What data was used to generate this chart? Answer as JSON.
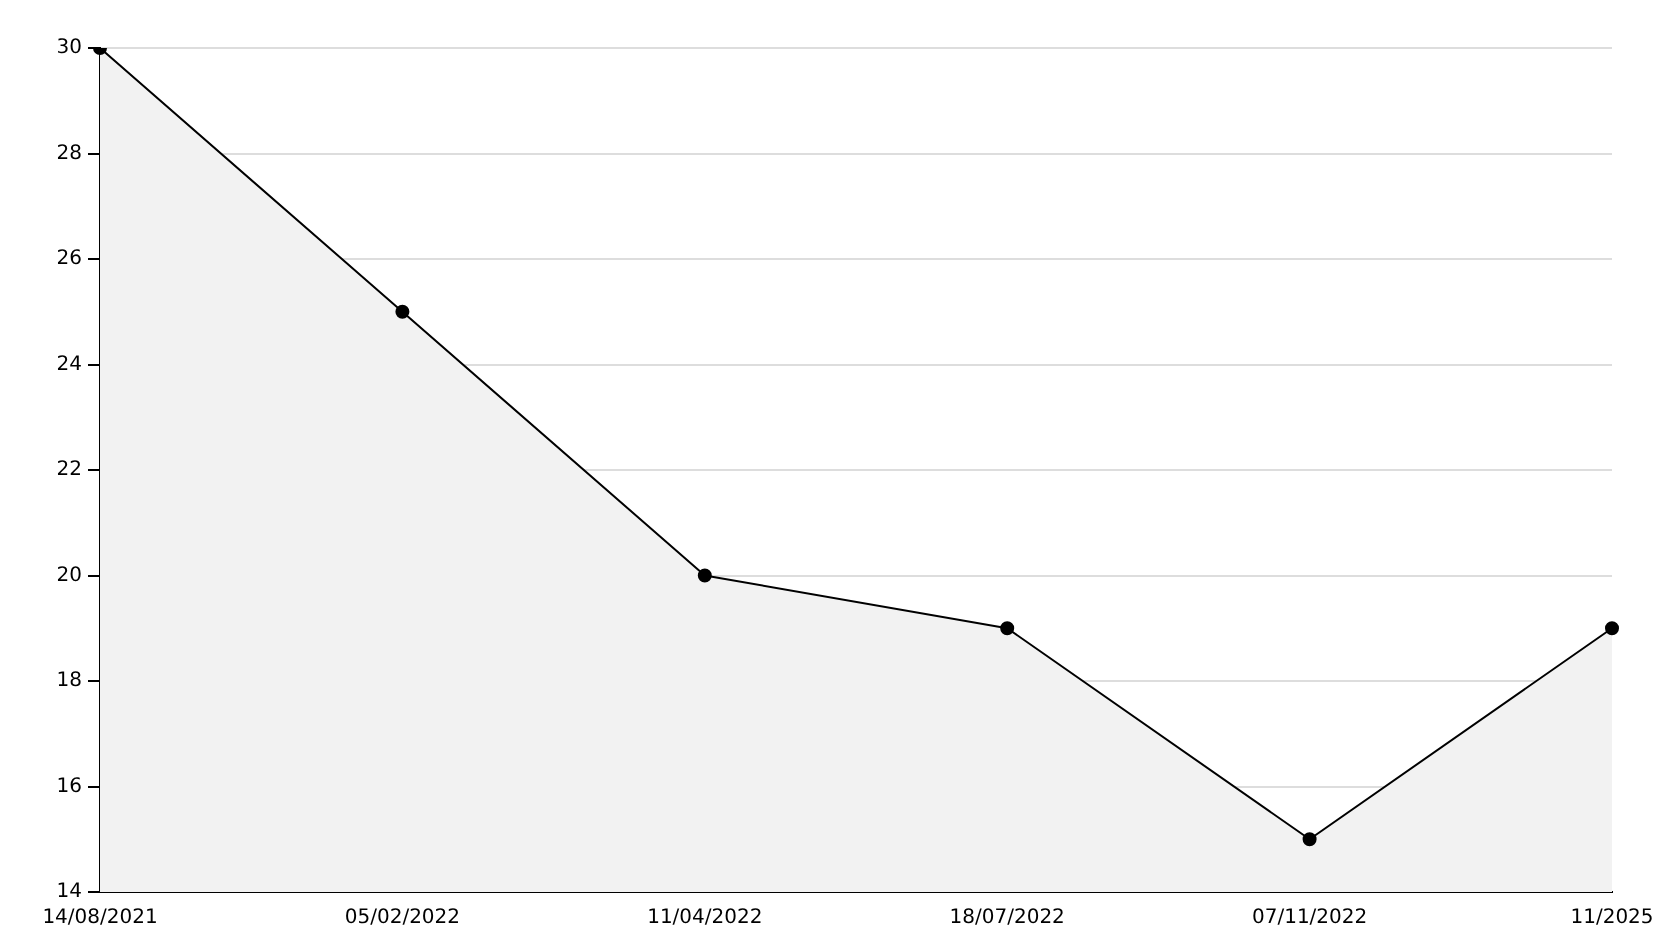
{
  "chart_data": {
    "type": "area",
    "categories": [
      "14/08/2021",
      "05/02/2022",
      "11/04/2022",
      "18/07/2022",
      "07/11/2022",
      "11/2025"
    ],
    "series": [
      {
        "color": "#f2f2f2",
        "values": [
          30,
          25,
          20,
          19,
          15,
          19
        ]
      }
    ],
    "ylim": [
      14,
      30
    ],
    "yticks": [
      14,
      16,
      18,
      20,
      22,
      24,
      26,
      28,
      30
    ],
    "grid": "y",
    "legend": false,
    "marker": "circle",
    "line_style": "solid"
  }
}
